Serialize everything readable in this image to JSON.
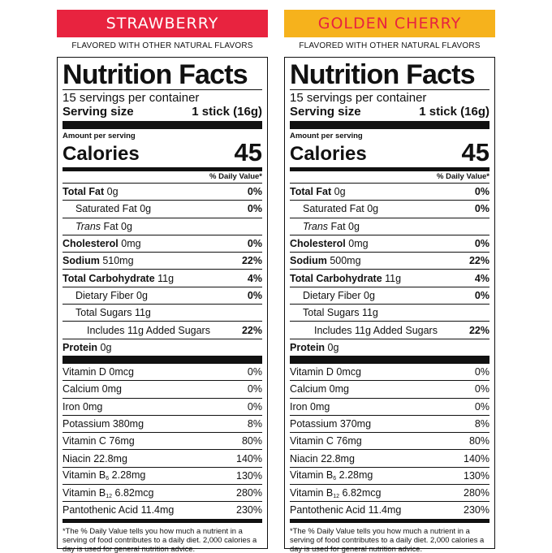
{
  "labels": [
    {
      "flavor": "STRAWBERRY",
      "flavor_color": "#e8233f",
      "note": "FLAVORED WITH OTHER NATURAL FLAVORS",
      "title": "Nutrition Facts",
      "servings": "15 servings per container",
      "serving_size_label": "Serving size",
      "serving_size_value": "1 stick (16g)",
      "amount_per_serving": "Amount per serving",
      "calories_label": "Calories",
      "calories_value": "45",
      "dv_header": "% Daily Value*",
      "total_fat_label": "Total Fat",
      "total_fat_amt": "0g",
      "total_fat_dv": "0%",
      "sat_fat_label": "Saturated Fat",
      "sat_fat_amt": "0g",
      "sat_fat_dv": "0%",
      "trans_label": "Trans",
      "trans_rest": "Fat 0g",
      "chol_label": "Cholesterol",
      "chol_amt": "0mg",
      "chol_dv": "0%",
      "sodium_label": "Sodium",
      "sodium_amt": "510mg",
      "sodium_dv": "22%",
      "carb_label": "Total Carbohydrate",
      "carb_amt": "11g",
      "carb_dv": "4%",
      "fiber_label": "Dietary Fiber",
      "fiber_amt": "0g",
      "fiber_dv": "0%",
      "sugars": "Total Sugars 11g",
      "added_sugars": "Includes 11g Added Sugars",
      "added_sugars_dv": "22%",
      "protein_label": "Protein",
      "protein_amt": "0g",
      "vit_d": "Vitamin D 0mcg",
      "vit_d_dv": "0%",
      "calcium": "Calcium 0mg",
      "calcium_dv": "0%",
      "iron": "Iron 0mg",
      "iron_dv": "0%",
      "potassium": "Potassium 380mg",
      "potassium_dv": "8%",
      "vit_c": "Vitamin C 76mg",
      "vit_c_dv": "80%",
      "niacin": "Niacin 22.8mg",
      "niacin_dv": "140%",
      "b6_label": "Vitamin B",
      "b6_sub": "6",
      "b6_amt": "2.28mg",
      "b6_dv": "130%",
      "b12_label": "Vitamin B",
      "b12_sub": "12",
      "b12_amt": "6.82mcg",
      "b12_dv": "280%",
      "pantothenic": "Pantothenic Acid 11.4mg",
      "pantothenic_dv": "230%",
      "footnote": "*The % Daily Value tells you how much a nutrient in a serving of food contributes to a daily diet. 2,000 calories a day is used for general nutrition advice."
    },
    {
      "flavor": "GOLDEN CHERRY",
      "flavor_color": "#f6b21c",
      "note": "FLAVORED WITH OTHER NATURAL FLAVORS",
      "title": "Nutrition Facts",
      "servings": "15 servings per container",
      "serving_size_label": "Serving size",
      "serving_size_value": "1 stick (16g)",
      "amount_per_serving": "Amount per serving",
      "calories_label": "Calories",
      "calories_value": "45",
      "dv_header": "% Daily Value*",
      "total_fat_label": "Total Fat",
      "total_fat_amt": "0g",
      "total_fat_dv": "0%",
      "sat_fat_label": "Saturated Fat",
      "sat_fat_amt": "0g",
      "sat_fat_dv": "0%",
      "trans_label": "Trans",
      "trans_rest": "Fat 0g",
      "chol_label": "Cholesterol",
      "chol_amt": "0mg",
      "chol_dv": "0%",
      "sodium_label": "Sodium",
      "sodium_amt": "500mg",
      "sodium_dv": "22%",
      "carb_label": "Total Carbohydrate",
      "carb_amt": "11g",
      "carb_dv": "4%",
      "fiber_label": "Dietary Fiber",
      "fiber_amt": "0g",
      "fiber_dv": "0%",
      "sugars": "Total Sugars 11g",
      "added_sugars": "Includes 11g Added Sugars",
      "added_sugars_dv": "22%",
      "protein_label": "Protein",
      "protein_amt": "0g",
      "vit_d": "Vitamin D 0mcg",
      "vit_d_dv": "0%",
      "calcium": "Calcium 0mg",
      "calcium_dv": "0%",
      "iron": "Iron 0mg",
      "iron_dv": "0%",
      "potassium": "Potassium 370mg",
      "potassium_dv": "8%",
      "vit_c": "Vitamin C 76mg",
      "vit_c_dv": "80%",
      "niacin": "Niacin 22.8mg",
      "niacin_dv": "140%",
      "b6_label": "Vitamin B",
      "b6_sub": "6",
      "b6_amt": "2.28mg",
      "b6_dv": "130%",
      "b12_label": "Vitamin B",
      "b12_sub": "12",
      "b12_amt": "6.82mcg",
      "b12_dv": "280%",
      "pantothenic": "Pantothenic Acid 11.4mg",
      "pantothenic_dv": "230%",
      "footnote": "*The % Daily Value tells you how much a nutrient in a serving of food contributes to a daily diet. 2,000 calories a day is used for general nutrition advice."
    }
  ]
}
